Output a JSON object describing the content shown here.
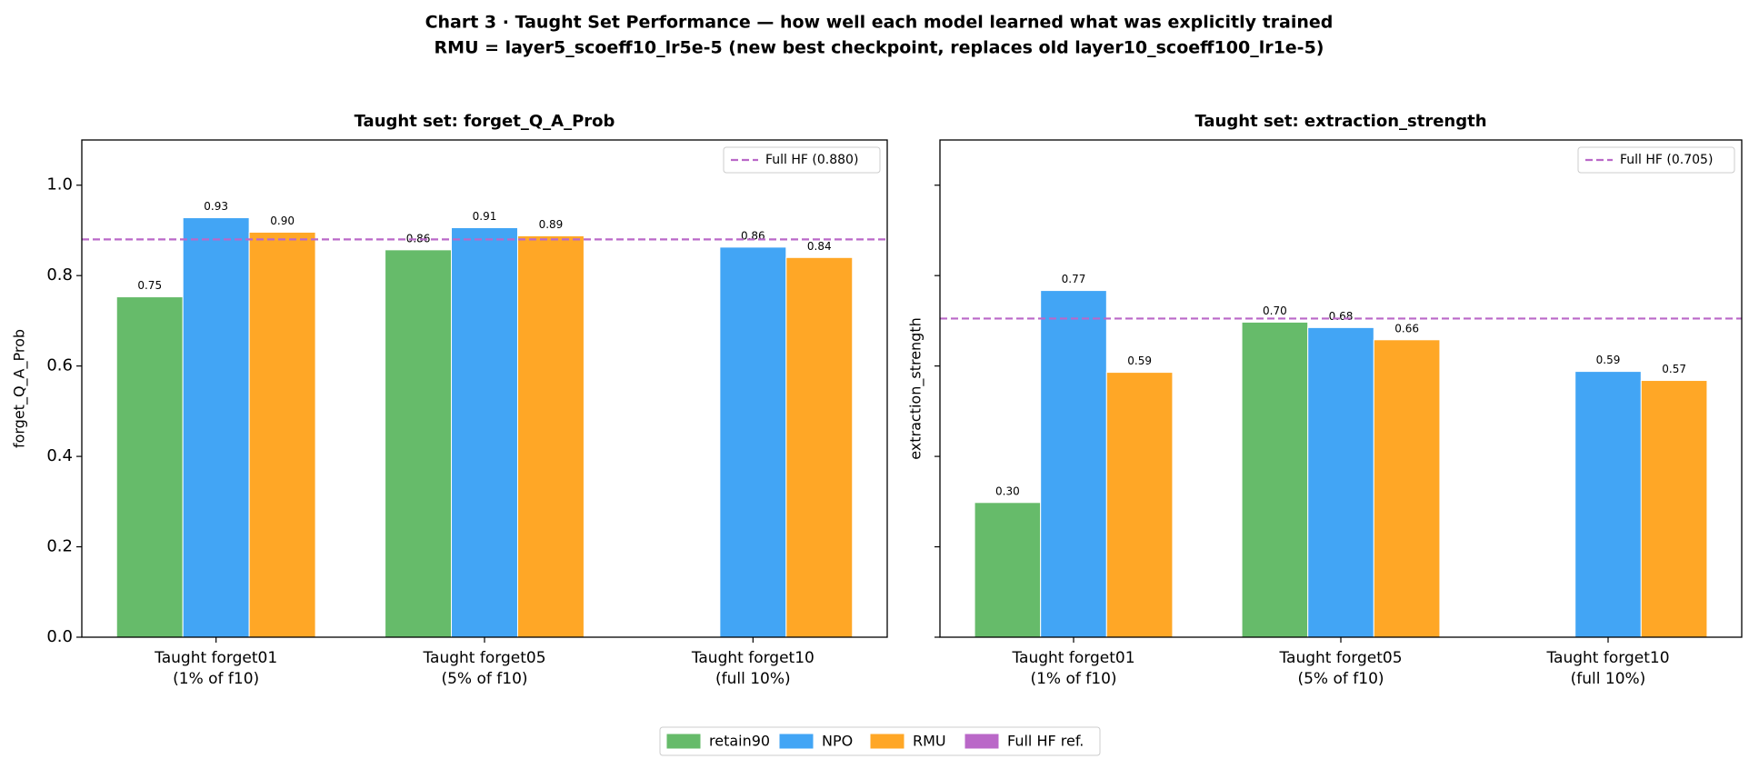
{
  "figure": {
    "title": [
      "Chart 3 · Taught Set Performance — how well each model learned what was explicitly trained",
      "RMU = layer5_scoeff10_lr5e-5 (new best checkpoint, replaces old layer10_scoeff100_lr1e-5)"
    ],
    "reference_legend_label": "Full HF ref.",
    "reference_color": "#ba68c8"
  },
  "chart_data": [
    {
      "type": "bar",
      "title": "Taught set: forget_Q_A_Prob",
      "y_label": "forget_Q_A_Prob",
      "categories": [
        [
          "Taught forget01",
          "(1% of f10)"
        ],
        [
          "Taught forget05",
          "(5% of f10)"
        ],
        [
          "Taught forget10",
          "(full 10%)"
        ]
      ],
      "series": [
        {
          "name": "retain90",
          "color": "#66bb6a",
          "values": [
            0.753,
            0.857,
            null
          ],
          "value_labels": [
            "0.75",
            "0.86",
            null
          ]
        },
        {
          "name": "NPO",
          "color": "#42a5f5",
          "values": [
            0.928,
            0.906,
            0.863
          ],
          "value_labels": [
            "0.93",
            "0.91",
            "0.86"
          ]
        },
        {
          "name": "RMU",
          "color": "#ffa726",
          "values": [
            0.896,
            0.888,
            0.84
          ],
          "value_labels": [
            "0.90",
            "0.89",
            "0.84"
          ]
        }
      ],
      "reference_line": {
        "value": 0.88,
        "label": "Full HF (0.880)",
        "color": "#ba68c8"
      },
      "ylim": [
        0,
        1.1
      ],
      "yticks": [
        {
          "value": 0,
          "label": "0.0"
        },
        0.2,
        0.4,
        0.6,
        0.8,
        {
          "value": 1,
          "label": "1.0"
        }
      ],
      "show_ytick_labels": true,
      "legend": "upper right"
    },
    {
      "type": "bar",
      "title": "Taught set: extraction_strength",
      "y_label": "extraction_strength",
      "categories": [
        [
          "Taught forget01",
          "(1% of f10)"
        ],
        [
          "Taught forget05",
          "(5% of f10)"
        ],
        [
          "Taught forget10",
          "(full 10%)"
        ]
      ],
      "series": [
        {
          "name": "retain90",
          "color": "#66bb6a",
          "values": [
            0.298,
            0.697,
            null
          ],
          "value_labels": [
            "0.30",
            "0.70",
            null
          ]
        },
        {
          "name": "NPO",
          "color": "#42a5f5",
          "values": [
            0.767,
            0.685,
            0.588
          ],
          "value_labels": [
            "0.77",
            "0.68",
            "0.59"
          ]
        },
        {
          "name": "RMU",
          "color": "#ffa726",
          "values": [
            0.586,
            0.658,
            0.568
          ],
          "value_labels": [
            "0.59",
            "0.66",
            "0.57"
          ]
        }
      ],
      "reference_line": {
        "value": 0.705,
        "label": "Full HF (0.705)",
        "color": "#ba68c8"
      },
      "ylim": [
        0,
        1.1
      ],
      "yticks": [
        {
          "value": 0,
          "label": "0.0"
        },
        0.2,
        0.4,
        0.6,
        0.8,
        {
          "value": 1,
          "label": "1.0"
        }
      ],
      "show_ytick_labels": false,
      "legend": "upper right"
    }
  ]
}
